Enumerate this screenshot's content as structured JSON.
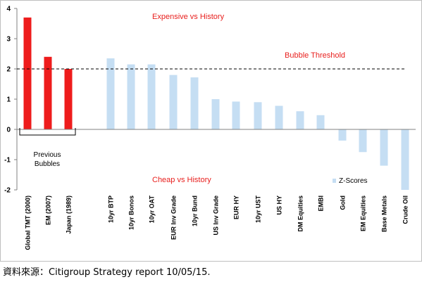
{
  "chart_data": {
    "type": "bar",
    "categories": [
      "Global TMT (2000)",
      "EM (2007)",
      "Japan (1989)",
      "10yr BTP",
      "10yr Bonos",
      "10yr OAT",
      "EUR Inv Grade",
      "10yr Bund",
      "US Inv Grade",
      "EUR HY",
      "10yr UST",
      "US HY",
      "DM Equities",
      "EMBI",
      "Gold",
      "EM Equities",
      "Base Metals",
      "Crude Oil"
    ],
    "series": [
      {
        "name": "",
        "values": [
          3.7,
          2.4,
          2.0,
          null,
          null,
          null,
          null,
          null,
          null,
          null,
          null,
          null,
          null,
          null,
          null,
          null,
          null,
          null
        ],
        "color": "#ee1c1c"
      },
      {
        "name": "Z-Scores",
        "values": [
          null,
          null,
          null,
          2.35,
          2.15,
          2.15,
          1.8,
          1.72,
          1.0,
          0.92,
          0.9,
          0.78,
          0.6,
          0.47,
          -0.37,
          -0.75,
          -1.2,
          -2.0
        ],
        "color": "#c5def3"
      }
    ],
    "ylim": [
      -2,
      4
    ],
    "yticks": [
      -2,
      -1,
      0,
      1,
      2,
      3,
      4
    ],
    "threshold": {
      "value": 2,
      "label": "Bubble Threshold"
    },
    "annotations": {
      "expensive": "Expensive vs History",
      "cheap": "Cheap vs History",
      "bracket_line1": "Previous",
      "bracket_line2": "Bubbles"
    },
    "legend_position": "bottom-right",
    "grid": false
  },
  "source_text": "資料來源：Citigroup Strategy report 10/05/15."
}
